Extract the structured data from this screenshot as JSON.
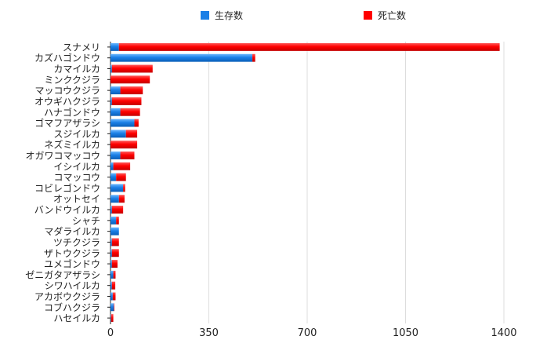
{
  "chart_data": {
    "type": "bar",
    "orientation": "horizontal",
    "stacked": true,
    "title": "",
    "xlabel": "",
    "ylabel": "",
    "xlim": [
      0,
      1400
    ],
    "x_ticks": [
      0,
      350,
      700,
      1050,
      1400
    ],
    "grid": true,
    "legend_position": "top",
    "categories": [
      "スナメリ",
      "カズハゴンドウ",
      "カマイルカ",
      "ミンククジラ",
      "マッコウクジラ",
      "オウギハクジラ",
      "ハナゴンドウ",
      "ゴマフアザラシ",
      "スジイルカ",
      "ネズミイルカ",
      "オガワコマッコウ",
      "イシイルカ",
      "コマッコウ",
      "コビレゴンドウ",
      "オットセイ",
      "バンドウイルカ",
      "シャチ",
      "マダライルカ",
      "ツチクジラ",
      "ザトウクジラ",
      "ユメゴンドウ",
      "ゼニガタアザラシ",
      "シワハイルカ",
      "アカボウクジラ",
      "コブハクジラ",
      "ハセイルカ"
    ],
    "series": [
      {
        "name": "生存数",
        "color": "#1a7fe6",
        "values": [
          30,
          505,
          5,
          0,
          35,
          5,
          35,
          85,
          55,
          0,
          35,
          10,
          20,
          45,
          30,
          5,
          20,
          30,
          5,
          5,
          5,
          10,
          5,
          8,
          12,
          2
        ]
      },
      {
        "name": "死亡数",
        "color": "#ff0000",
        "values": [
          1355,
          10,
          145,
          140,
          80,
          105,
          70,
          15,
          40,
          95,
          50,
          60,
          35,
          7,
          20,
          40,
          10,
          0,
          25,
          25,
          20,
          8,
          12,
          10,
          2,
          8
        ]
      }
    ]
  }
}
